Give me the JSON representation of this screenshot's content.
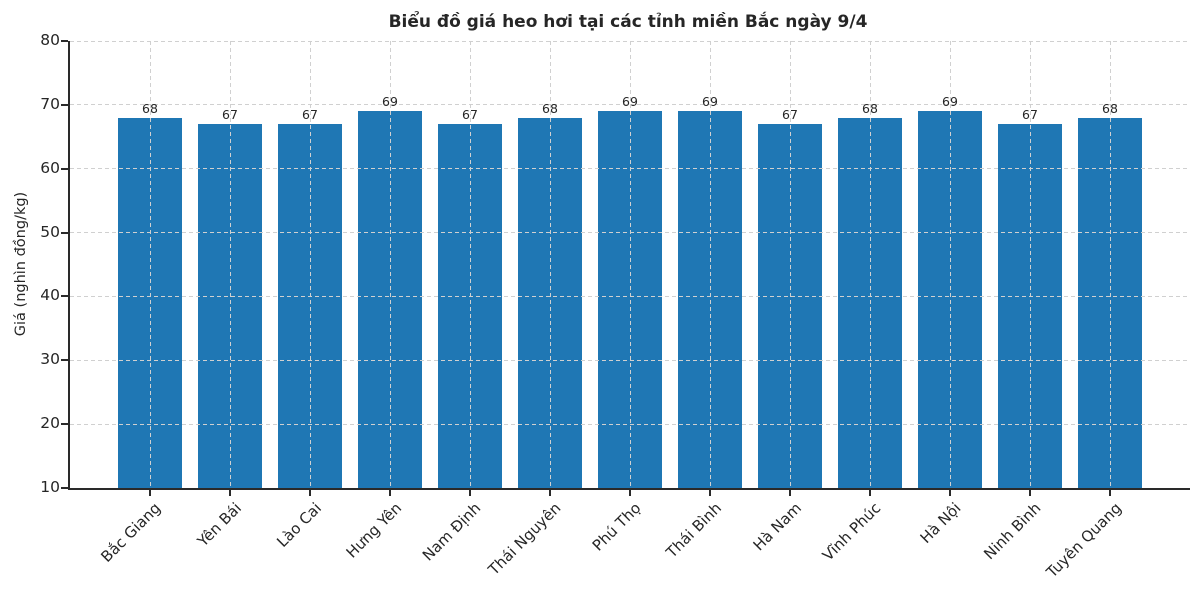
{
  "chart_data": {
    "type": "bar",
    "title": "Biểu đồ giá heo hơi tại các tỉnh miền Bắc ngày 9/4",
    "categories": [
      "Bắc Giang",
      "Yên Bái",
      "Lào Cai",
      "Hưng Yên",
      "Nam Định",
      "Thái Nguyên",
      "Phú Thọ",
      "Thái Bình",
      "Hà Nam",
      "Vĩnh Phúc",
      "Hà Nội",
      "Ninh Bình",
      "Tuyên Quang"
    ],
    "values": [
      68,
      67,
      67,
      69,
      67,
      68,
      69,
      69,
      67,
      68,
      69,
      67,
      68
    ],
    "value_labels": [
      68,
      67,
      67,
      69,
      67,
      68,
      69,
      69,
      67,
      68,
      69,
      67,
      68
    ],
    "xlabel": "",
    "ylabel": "Giá (nghìn đồng/kg)",
    "ylim": [
      10,
      80
    ],
    "yticks": [
      10,
      20,
      30,
      40,
      50,
      60,
      70,
      80
    ],
    "bar_color": "#1f77b4",
    "text_color": "#262626",
    "grid": "dashed-both-axes",
    "legend": "none",
    "x_tick_rotation_deg": 45
  }
}
